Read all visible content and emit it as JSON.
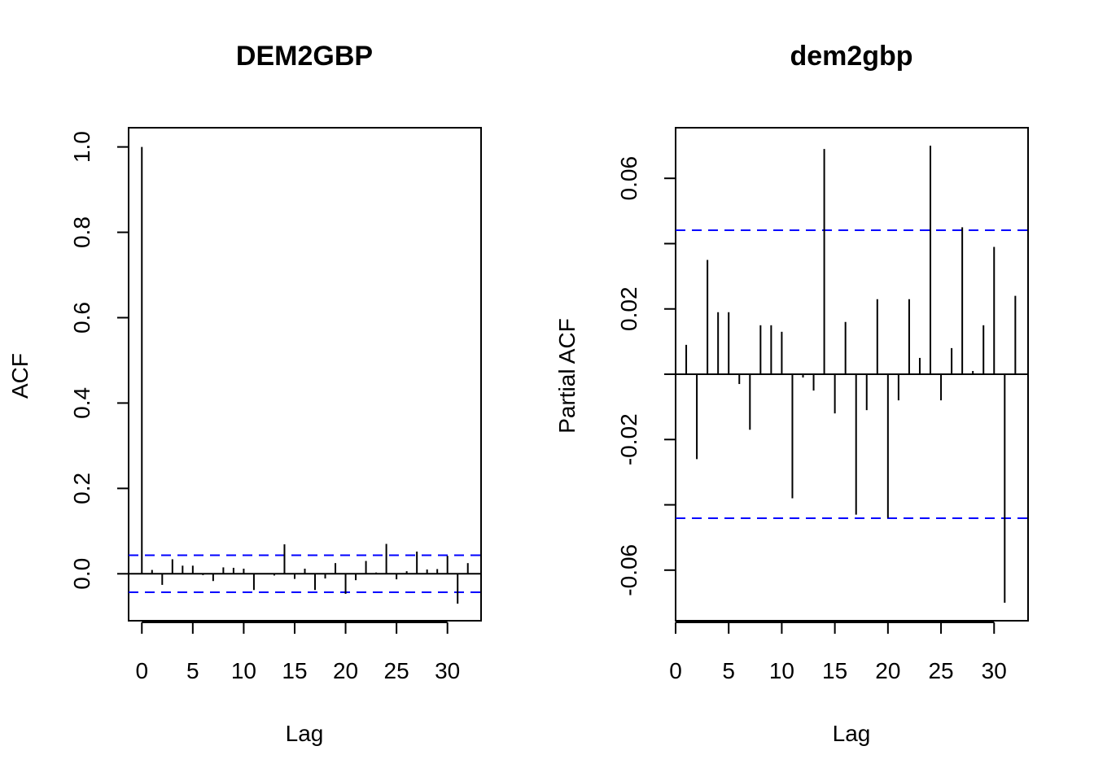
{
  "chart_data": [
    {
      "type": "bar",
      "title": "DEM2GBP",
      "xlabel": "Lag",
      "ylabel": "ACF",
      "xlim": [
        -1.3,
        33.3
      ],
      "ylim": [
        -0.11,
        1.045
      ],
      "x_ticks": [
        0,
        5,
        10,
        15,
        20,
        25,
        30
      ],
      "y_ticks": [
        0.0,
        0.2,
        0.4,
        0.6,
        0.8,
        1.0
      ],
      "y_tick_labels": [
        "0.0",
        "0.2",
        "0.4",
        "0.6",
        "0.8",
        "1.0"
      ],
      "ci": 0.0434,
      "ci_color": "#0000ff",
      "lags": [
        0,
        1,
        2,
        3,
        4,
        5,
        6,
        7,
        8,
        9,
        10,
        11,
        12,
        13,
        14,
        15,
        16,
        17,
        18,
        19,
        20,
        21,
        22,
        23,
        24,
        25,
        26,
        27,
        28,
        29,
        30,
        31,
        32
      ],
      "values": [
        1.0,
        0.009,
        -0.026,
        0.034,
        0.019,
        0.019,
        -0.003,
        -0.017,
        0.015,
        0.014,
        0.012,
        -0.038,
        -0.001,
        -0.004,
        0.069,
        -0.012,
        0.012,
        -0.038,
        -0.011,
        0.025,
        -0.047,
        -0.015,
        0.03,
        0.003,
        0.07,
        -0.013,
        0.006,
        0.052,
        0.01,
        0.011,
        0.042,
        -0.07,
        0.025
      ]
    },
    {
      "type": "bar",
      "title": "dem2gbp",
      "xlabel": "Lag",
      "ylabel": "Partial ACF",
      "xlim": [
        0,
        33.2
      ],
      "ylim": [
        -0.0755,
        0.0755
      ],
      "x_ticks": [
        0,
        5,
        10,
        15,
        20,
        25,
        30
      ],
      "y_ticks": [
        -0.06,
        -0.02,
        0.02,
        0.06
      ],
      "y_tick_labels": [
        "-0.06",
        "-0.02",
        "0.02",
        "0.06"
      ],
      "y_minor_ticks": [
        -0.04,
        0.0,
        0.04
      ],
      "ci": 0.0441,
      "ci_color": "#0000ff",
      "lags": [
        1,
        2,
        3,
        4,
        5,
        6,
        7,
        8,
        9,
        10,
        11,
        12,
        13,
        14,
        15,
        16,
        17,
        18,
        19,
        20,
        21,
        22,
        23,
        24,
        25,
        26,
        27,
        28,
        29,
        30,
        31,
        32
      ],
      "values": [
        0.009,
        -0.026,
        0.035,
        0.019,
        0.019,
        -0.003,
        -0.017,
        0.015,
        0.015,
        0.013,
        -0.038,
        -0.001,
        -0.005,
        0.069,
        -0.012,
        0.016,
        -0.043,
        -0.011,
        0.023,
        -0.044,
        -0.008,
        0.023,
        0.005,
        0.07,
        -0.008,
        0.008,
        0.045,
        0.001,
        0.015,
        0.039,
        -0.07,
        0.024
      ]
    }
  ]
}
